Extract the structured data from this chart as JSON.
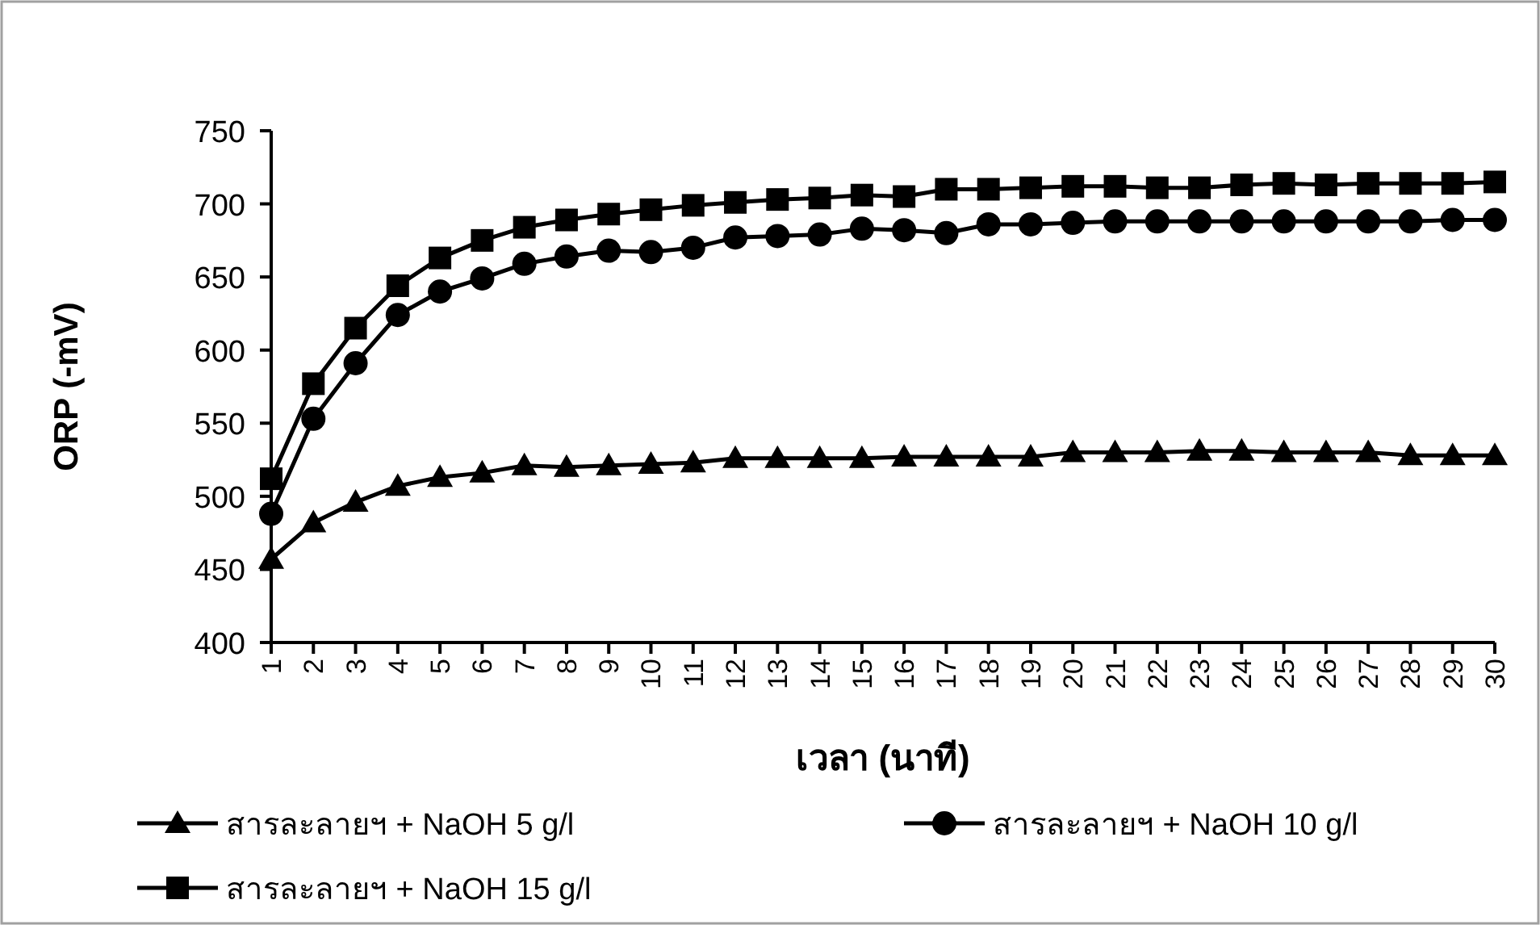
{
  "chart_data": {
    "type": "line",
    "xlabel": "เวลา (นาที)",
    "ylabel": "ORP (-mV)",
    "categories": [
      "1",
      "2",
      "3",
      "4",
      "5",
      "6",
      "7",
      "8",
      "9",
      "10",
      "11",
      "12",
      "13",
      "14",
      "15",
      "16",
      "17",
      "18",
      "19",
      "20",
      "21",
      "22",
      "23",
      "24",
      "25",
      "26",
      "27",
      "28",
      "29",
      "30"
    ],
    "ylim": [
      400,
      750
    ],
    "yticks": [
      400,
      450,
      500,
      550,
      600,
      650,
      700,
      750
    ],
    "grid": false,
    "legend": "bottom",
    "line_style": "solid",
    "series": [
      {
        "name": "สารละลายฯ + NaOH 5 g/l",
        "color": "#000000",
        "marker": "triangle",
        "values": [
          457,
          482,
          496,
          507,
          513,
          516,
          521,
          520,
          521,
          522,
          523,
          526,
          526,
          526,
          526,
          527,
          527,
          527,
          527,
          530,
          530,
          530,
          531,
          531,
          530,
          530,
          530,
          528,
          528,
          528
        ]
      },
      {
        "name": "สารละลายฯ + NaOH 10 g/l",
        "color": "#000000",
        "marker": "circle",
        "values": [
          488,
          553,
          591,
          624,
          640,
          649,
          659,
          664,
          668,
          667,
          670,
          677,
          678,
          679,
          683,
          682,
          680,
          686,
          686,
          687,
          688,
          688,
          688,
          688,
          688,
          688,
          688,
          688,
          689,
          689
        ]
      },
      {
        "name": "สารละลายฯ + NaOH 15 g/l",
        "color": "#000000",
        "marker": "square",
        "values": [
          512,
          577,
          615,
          644,
          663,
          675,
          684,
          689,
          693,
          696,
          699,
          701,
          703,
          704,
          706,
          705,
          710,
          710,
          711,
          712,
          712,
          711,
          711,
          713,
          714,
          713,
          714,
          714,
          714,
          715
        ]
      }
    ]
  }
}
